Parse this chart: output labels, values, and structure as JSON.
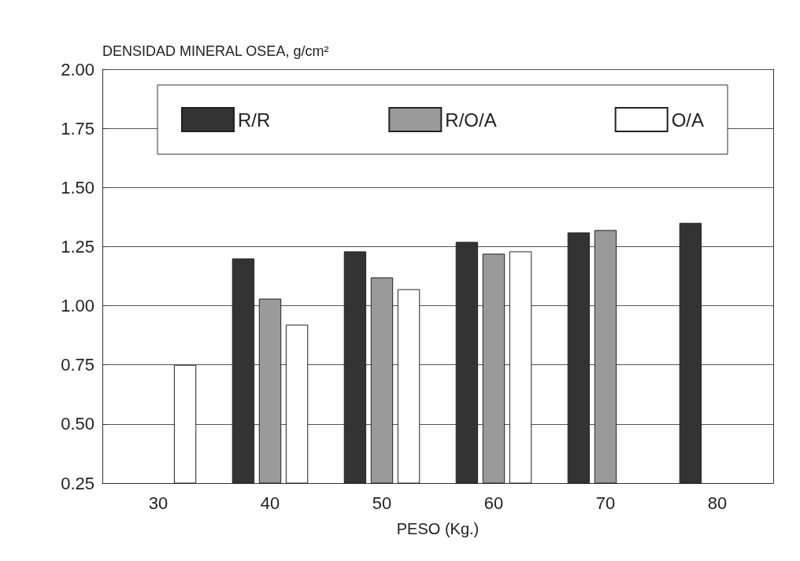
{
  "chart_data": {
    "type": "bar",
    "ylabel": "DENSIDAD MINERAL OSEA, g/cm²",
    "xlabel": "PESO (Kg.)",
    "categories": [
      "30",
      "40",
      "50",
      "60",
      "70",
      "80"
    ],
    "series": [
      {
        "name": "R/R",
        "color": "#333333",
        "values": [
          null,
          1.2,
          1.23,
          1.27,
          1.31,
          1.35
        ]
      },
      {
        "name": "R/O/A",
        "color": "#9a9a9a",
        "values": [
          null,
          1.03,
          1.12,
          1.22,
          1.32,
          null
        ]
      },
      {
        "name": "O/A",
        "color": "#ffffff",
        "values": [
          0.75,
          0.92,
          1.07,
          1.23,
          null,
          null
        ]
      }
    ],
    "ylim": [
      0.25,
      2.0
    ],
    "yticks": [
      0.25,
      {
        "value": 0.5,
        "label": "0.50"
      },
      0.75,
      {
        "value": 1,
        "label": "1.00"
      },
      1.25,
      {
        "value": 1.5,
        "label": "1.50"
      },
      1.75,
      {
        "value": 2,
        "label": "2.00"
      }
    ],
    "grid": "y",
    "legend": "top"
  }
}
